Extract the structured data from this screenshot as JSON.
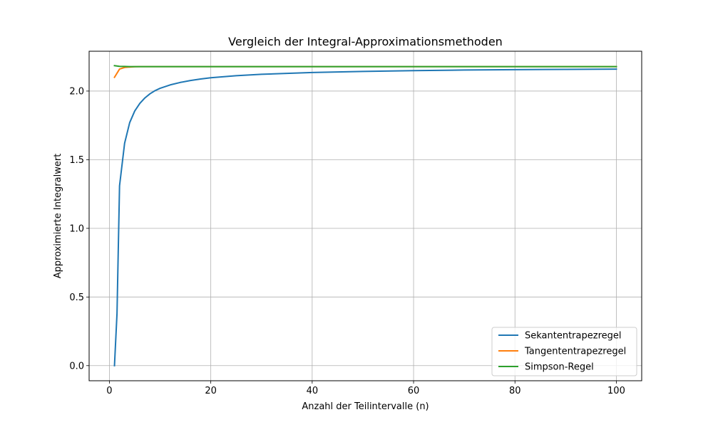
{
  "chart_data": {
    "type": "line",
    "title": "Vergleich der Integral-Approximationsmethoden",
    "xlabel": "Anzahl der Teilintervalle (n)",
    "ylabel": "Approximierte Integralwert",
    "xlim": [
      -4.0,
      105.0
    ],
    "ylim": [
      -0.11,
      2.29
    ],
    "xticks": [
      0,
      20,
      40,
      60,
      80,
      100
    ],
    "yticks": [
      0.0,
      0.5,
      1.0,
      1.5,
      2.0
    ],
    "xtick_labels": [
      "0",
      "20",
      "40",
      "60",
      "80",
      "100"
    ],
    "ytick_labels": [
      "0.0",
      "0.5",
      "1.0",
      "1.5",
      "2.0"
    ],
    "grid": true,
    "legend_position": "lower-right",
    "series": [
      {
        "name": "Sekantentrapezregel",
        "color": "#1f77b4",
        "x": [
          1,
          1.5,
          2,
          3,
          4,
          5,
          6,
          7,
          8,
          9,
          10,
          12,
          14,
          16,
          18,
          20,
          25,
          30,
          40,
          50,
          60,
          70,
          80,
          90,
          100
        ],
        "values": [
          0.0,
          0.38,
          1.31,
          1.62,
          1.77,
          1.855,
          1.91,
          1.95,
          1.98,
          2.003,
          2.02,
          2.045,
          2.063,
          2.077,
          2.088,
          2.097,
          2.112,
          2.122,
          2.135,
          2.143,
          2.149,
          2.153,
          2.156,
          2.158,
          2.16
        ]
      },
      {
        "name": "Tangententrapezregel",
        "color": "#ff7f0e",
        "x": [
          1,
          2,
          3,
          4,
          5,
          6,
          8,
          10,
          20,
          40,
          60,
          80,
          100
        ],
        "values": [
          2.1,
          2.16,
          2.172,
          2.175,
          2.177,
          2.178,
          2.178,
          2.178,
          2.178,
          2.178,
          2.178,
          2.178,
          2.178
        ]
      },
      {
        "name": "Simpson-Regel",
        "color": "#2ca02c",
        "x": [
          1,
          2,
          3,
          4,
          5,
          6,
          8,
          10,
          20,
          40,
          60,
          80,
          100
        ],
        "values": [
          2.185,
          2.18,
          2.179,
          2.178,
          2.178,
          2.178,
          2.178,
          2.178,
          2.178,
          2.178,
          2.178,
          2.178,
          2.178
        ]
      }
    ]
  }
}
